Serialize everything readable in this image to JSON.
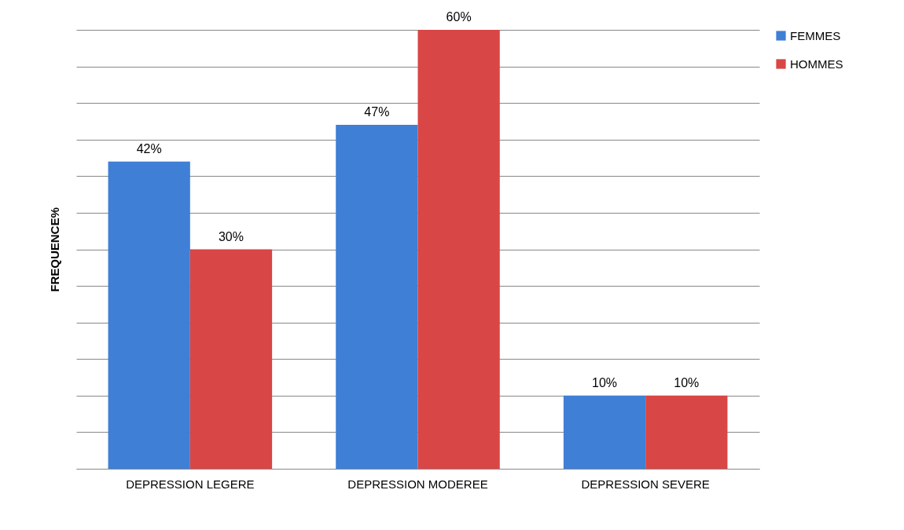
{
  "chart_data": {
    "type": "bar",
    "ylabel": "FREQUENCE%",
    "categories": [
      "DEPRESSION LEGERE",
      "DEPRESSION MODEREE",
      "DEPRESSION SEVERE"
    ],
    "series": [
      {
        "name": "FEMMES",
        "color": "#3f7fd6",
        "values": [
          42,
          47,
          10
        ],
        "value_labels": [
          "42%",
          "47%",
          "10%"
        ]
      },
      {
        "name": "HOMMES",
        "color": "#d94646",
        "values": [
          30,
          60,
          10
        ],
        "value_labels": [
          "30%",
          "60%",
          "10%"
        ]
      }
    ],
    "tick_labels": "x",
    "grid": "y",
    "legend": "right"
  }
}
